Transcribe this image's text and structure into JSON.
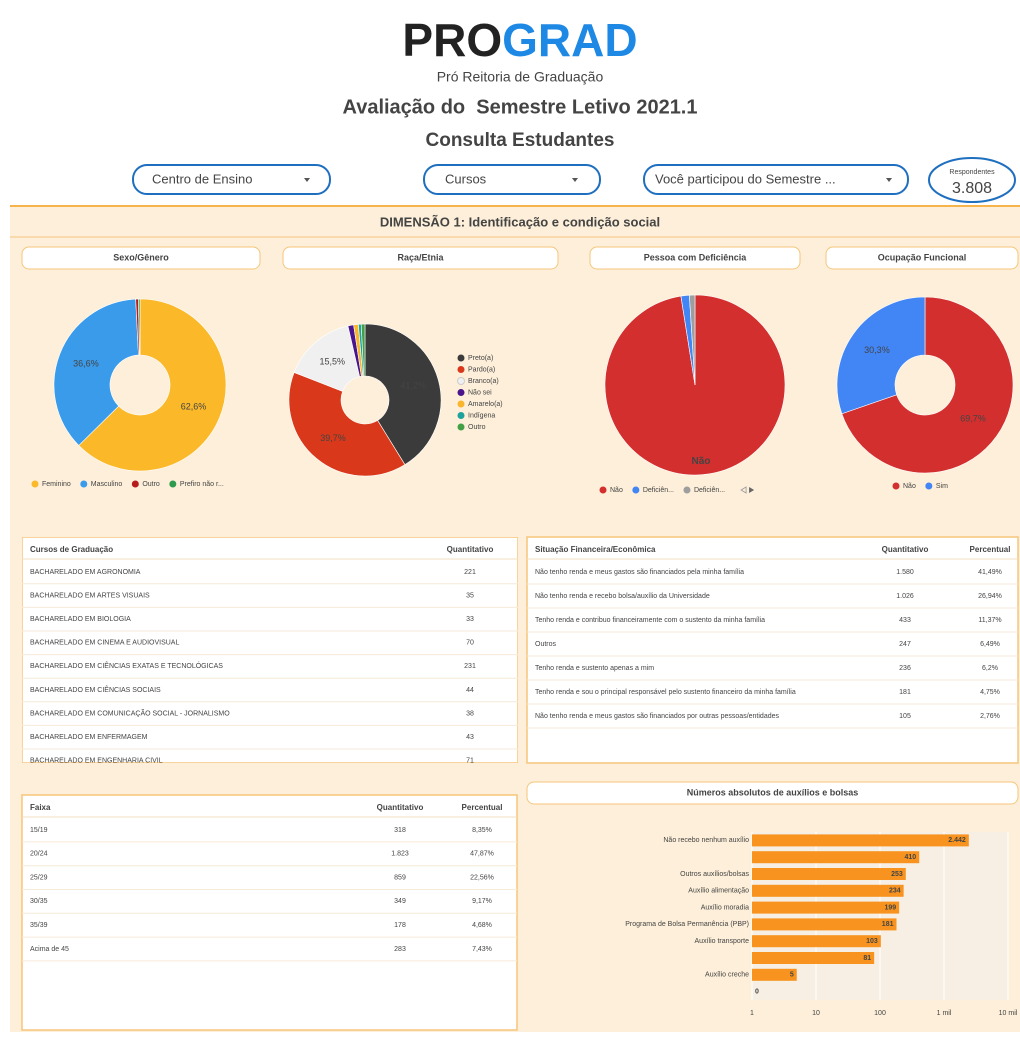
{
  "header": {
    "logo_left": "PRO",
    "logo_right": "GRAD",
    "logo_subtitle": "Pró Reitoria de Graduação",
    "title": "Avaliação do  Semestre Letivo 2021.1",
    "subtitle": "Consulta Estudantes"
  },
  "filters": [
    "Centro de Ensino",
    "Cursos",
    "Você participou do Semestre ..."
  ],
  "respondents": {
    "label": "Respondentes",
    "value": "3.808"
  },
  "section_title": "DIMENSÃO 1: Identificação e condição social",
  "chart_data": [
    {
      "type": "donut",
      "title": "Sexo/Gênero",
      "categories": [
        "Feminino",
        "Masculino",
        "Outro",
        "Prefiro não r..."
      ],
      "values": [
        62.6,
        36.6,
        0.5,
        0.3
      ],
      "value_labels": [
        "62,6%",
        "36,6%",
        null,
        null
      ],
      "colors": [
        "#fbb829",
        "#3a9bea",
        "#b71c1c",
        "#2e9b4e"
      ],
      "legend": "bottom"
    },
    {
      "type": "donut",
      "title": "Raça/Etnia",
      "categories": [
        "Preto(a)",
        "Pardo(a)",
        "Branco(a)",
        "Não sei",
        "Amarelo(a)",
        "Indígena",
        "Outro"
      ],
      "values": [
        41.2,
        39.7,
        15.5,
        1.2,
        1.0,
        0.6,
        0.8
      ],
      "value_labels": [
        "41,2%",
        "39,7%",
        "15,5%",
        null,
        null,
        null,
        null
      ],
      "colors": [
        "#3b3b3b",
        "#d9391a",
        "#f0f0f0",
        "#4a148c",
        "#f9b52b",
        "#1ba39c",
        "#43a047"
      ],
      "legend": "right"
    },
    {
      "type": "pie",
      "title": "Pessoa com Deficiência",
      "categories": [
        "Não",
        "Deficiên...",
        "Deficiên..."
      ],
      "values": [
        97.5,
        1.5,
        1.0
      ],
      "colors": [
        "#d32f2f",
        "#4285f4",
        "#9e9e9e"
      ],
      "legend": "bottom"
    },
    {
      "type": "donut",
      "title": "Ocupação Funcional",
      "categories": [
        "Não",
        "Sim"
      ],
      "values": [
        69.7,
        30.3
      ],
      "value_labels": [
        "69,7%",
        "30,3%"
      ],
      "colors": [
        "#d32f2f",
        "#4285f4"
      ],
      "legend": "bottom"
    },
    {
      "type": "hbar",
      "title": "Números absolutos de auxílios e bolsas",
      "categories": [
        "Não recebo nenhum auxílio",
        null,
        "Outros auxílios/bolsas",
        "Auxílio alimentação",
        "Auxílio moradia",
        "Programa de Bolsa Permanência (PBP)",
        "Auxílio transporte",
        null,
        "Auxílio creche",
        null
      ],
      "values": [
        2442,
        410,
        253,
        234,
        199,
        181,
        103,
        81,
        5,
        0
      ],
      "value_labels": [
        "2.442",
        "410",
        "253",
        "234",
        "199",
        "181",
        "103",
        "81",
        "5",
        "0"
      ],
      "color": "#f7931e",
      "log_scale": true,
      "grid": true,
      "xlim": [
        1,
        10000
      ],
      "xticks": [
        1,
        10,
        100,
        {
          "value": 1000,
          "label": "1 mil"
        },
        {
          "value": 10000,
          "label": "10 mil"
        }
      ]
    }
  ],
  "tables": {
    "courses": {
      "headers": [
        "Cursos de Graduação",
        "Quantitativo"
      ],
      "rows": [
        [
          "BACHARELADO EM AGRONOMIA",
          "221"
        ],
        [
          "BACHARELADO EM ARTES VISUAIS",
          "35"
        ],
        [
          "BACHARELADO EM BIOLOGIA",
          "33"
        ],
        [
          "BACHARELADO EM CINEMA E AUDIOVISUAL",
          "70"
        ],
        [
          "BACHARELADO EM CIÊNCIAS EXATAS E TECNOLÓGICAS",
          "231"
        ],
        [
          "BACHARELADO EM CIÊNCIAS SOCIAIS",
          "44"
        ],
        [
          "BACHARELADO EM COMUNICAÇÃO SOCIAL - JORNALISMO",
          "38"
        ],
        [
          "BACHARELADO EM ENFERMAGEM",
          "43"
        ],
        [
          "BACHARELADO EM ENGENHARIA CIVIL",
          "71"
        ]
      ]
    },
    "finance": {
      "headers": [
        "Situação Financeira/Econômica",
        "Quantitativo",
        "Percentual"
      ],
      "rows": [
        [
          "Não tenho renda e meus gastos são financiados pela minha família",
          "1.580",
          "41,49%"
        ],
        [
          "Não tenho renda e recebo bolsa/auxílio da Universidade",
          "1.026",
          "26,94%"
        ],
        [
          "Tenho renda e contribuo financeiramente com o sustento da minha família",
          "433",
          "11,37%"
        ],
        [
          "Outros",
          "247",
          "6,49%"
        ],
        [
          "Tenho renda e sustento apenas a mim",
          "236",
          "6,2%"
        ],
        [
          "Tenho renda e sou o principal responsável pelo sustento financeiro da minha família",
          "181",
          "4,75%"
        ],
        [
          "Não tenho renda e meus gastos são financiados por outras pessoas/entidades",
          "105",
          "2,76%"
        ]
      ]
    },
    "age": {
      "headers": [
        "Faixa",
        "Quantitativo",
        "Percentual"
      ],
      "rows": [
        [
          "15/19",
          "318",
          "8,35%"
        ],
        [
          "20/24",
          "1.823",
          "47,87%"
        ],
        [
          "25/29",
          "859",
          "22,56%"
        ],
        [
          "30/35",
          "349",
          "9,17%"
        ],
        [
          "35/39",
          "178",
          "4,68%"
        ],
        [
          "Acima de 45",
          "283",
          "7,43%"
        ]
      ]
    }
  }
}
